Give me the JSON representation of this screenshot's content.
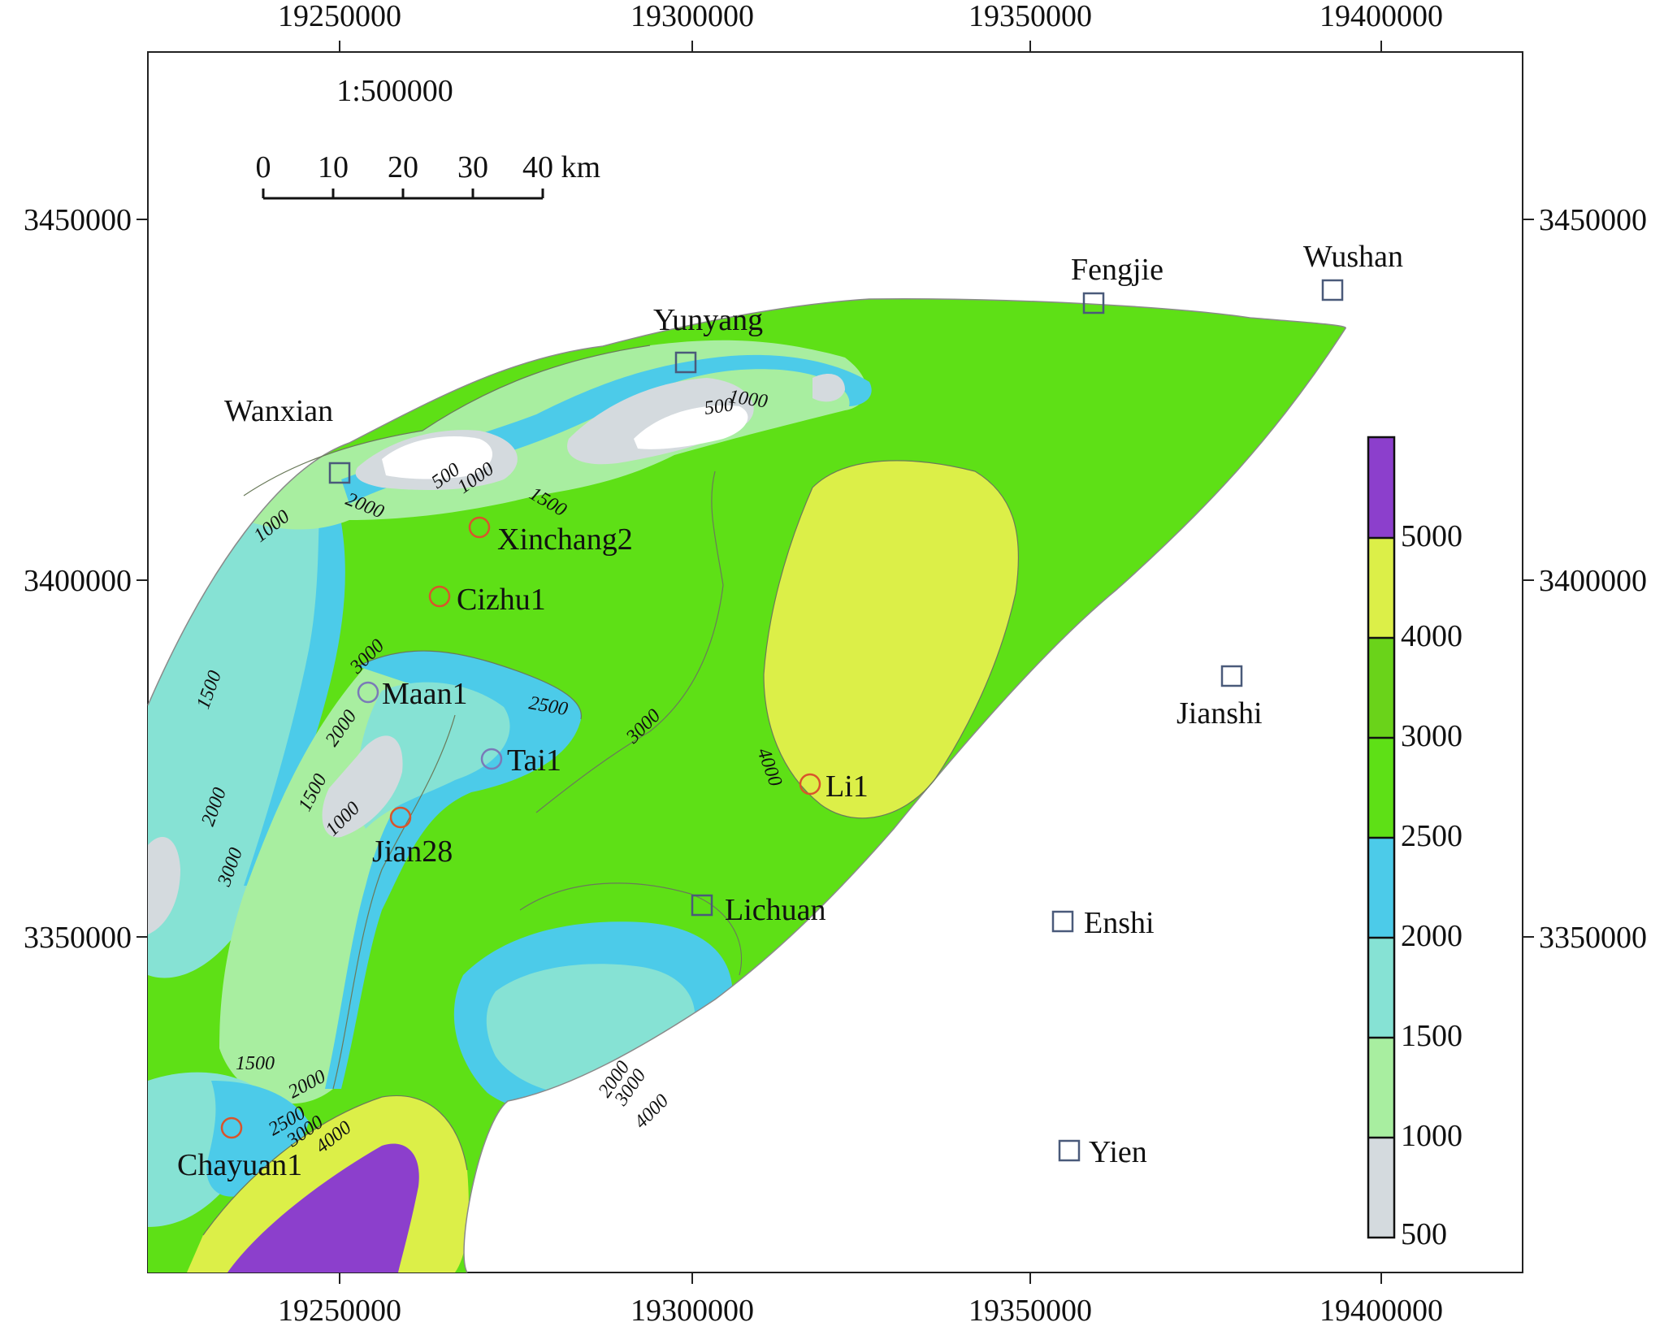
{
  "axes": {
    "x_ticks": [
      "19250000",
      "19300000",
      "19350000",
      "19400000"
    ],
    "y_ticks": [
      "3450000",
      "3400000",
      "3350000"
    ]
  },
  "scale": {
    "ratio": "1:500000",
    "ticks": [
      "0",
      "10",
      "20",
      "30",
      "40 km"
    ]
  },
  "towns": [
    {
      "id": "fengjie",
      "name": "Fengjie"
    },
    {
      "id": "wushan",
      "name": "Wushan"
    },
    {
      "id": "yunyang",
      "name": "Yunyang"
    },
    {
      "id": "wanxian",
      "name": "Wanxian"
    },
    {
      "id": "jianshi",
      "name": "Jianshi"
    },
    {
      "id": "lichuan",
      "name": "Lichuan"
    },
    {
      "id": "enshi",
      "name": "Enshi"
    },
    {
      "id": "yien",
      "name": "Yien"
    }
  ],
  "wells": [
    {
      "id": "xinchang2",
      "name": "Xinchang2"
    },
    {
      "id": "cizhu1",
      "name": "Cizhu1"
    },
    {
      "id": "maan1",
      "name": "Maan1"
    },
    {
      "id": "tai1",
      "name": "Tai1"
    },
    {
      "id": "jian28",
      "name": "Jian28"
    },
    {
      "id": "li1",
      "name": "Li1"
    },
    {
      "id": "chayuan1",
      "name": "Chayuan1"
    }
  ],
  "contour_labels": [
    "1000",
    "500",
    "500",
    "1000",
    "1500",
    "2000",
    "1000",
    "3000",
    "2500",
    "2000",
    "1500",
    "1000",
    "1500",
    "2000",
    "3000",
    "3000",
    "4000",
    "1500",
    "2000",
    "2500",
    "3000",
    "4000",
    "2000",
    "3000",
    "4000"
  ],
  "legend": {
    "labels": [
      "5000",
      "4000",
      "3000",
      "2500",
      "2000",
      "1500",
      "1000",
      "500"
    ],
    "colors": {
      "c500_1000": "#d4dade",
      "c1000_1500": "#a8eea0",
      "c1500_2000": "#86e2d4",
      "c2000_2500": "#4ccbe9",
      "c2500_3000": "#5ee016",
      "c3000_4000": "#6ad31a",
      "c4000_5000": "#dcef48",
      "c5000": "#8c3fcc"
    }
  }
}
